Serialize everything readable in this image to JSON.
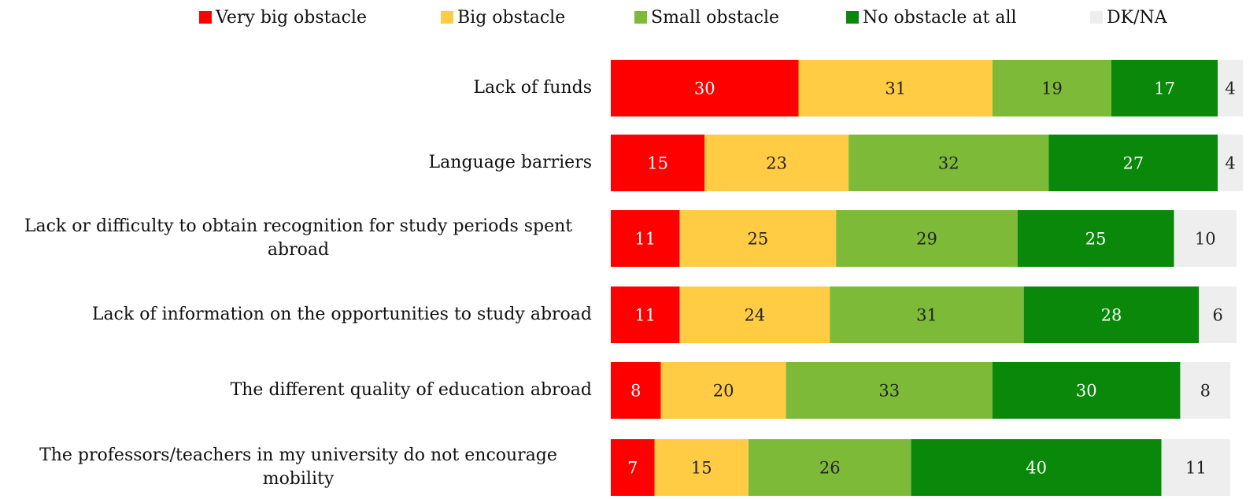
{
  "chart_data": {
    "type": "stacked-bar-horizontal",
    "categories": [
      "Lack of funds",
      "Language barriers",
      "Lack or difficulty to obtain recognition for study periods spent abroad",
      "Lack of information on the opportunities to study abroad",
      "The different quality of education abroad",
      "The professors/teachers in my university do not encourage mobility"
    ],
    "series": [
      {
        "name": "Very big obstacle",
        "color": "#ff0000",
        "values": [
          30,
          15,
          11,
          11,
          8,
          7
        ]
      },
      {
        "name": "Big obstacle",
        "color": "#ffcc44",
        "values": [
          31,
          23,
          25,
          24,
          20,
          15
        ]
      },
      {
        "name": "Small obstacle",
        "color": "#7dba38",
        "values": [
          19,
          32,
          29,
          31,
          33,
          26
        ]
      },
      {
        "name": "No obstacle at all",
        "color": "#0a880a",
        "values": [
          17,
          27,
          25,
          28,
          30,
          40
        ]
      },
      {
        "name": "DK/NA",
        "color": "#eeeeee",
        "values": [
          4,
          4,
          10,
          6,
          8,
          11
        ]
      }
    ],
    "legend": "top"
  }
}
